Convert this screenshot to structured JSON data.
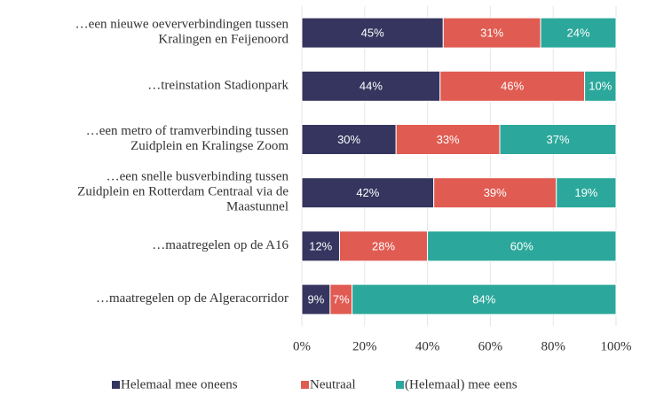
{
  "chart_data": {
    "type": "stacked-barh",
    "categories": [
      "…een nieuwe oeververbindingen tussen\nKralingen en Feijenoord",
      "…treinstation Stadionpark",
      "…een metro of tramverbinding tussen\nZuidplein en Kralingse Zoom",
      "…een snelle busverbinding tussen\nZuidplein en Rotterdam Centraal via de\nMaastunnel",
      "…maatregelen op de A16",
      "…maatregelen op de Algeracorridor"
    ],
    "series": [
      {
        "name": "Helemaal mee oneens",
        "color": "#35355f",
        "values": [
          45,
          44,
          30,
          42,
          12,
          9
        ],
        "value_labels": [
          "45%",
          "44%",
          "30%",
          "42%",
          "12%",
          "9%"
        ]
      },
      {
        "name": "Neutraal",
        "color": "#e05c52",
        "values": [
          31,
          46,
          33,
          39,
          28,
          7
        ],
        "value_labels": [
          "31%",
          "46%",
          "33%",
          "39%",
          "28%",
          "7%"
        ]
      },
      {
        "name": "(Helemaal) mee eens",
        "color": "#2ba89b",
        "values": [
          24,
          10,
          37,
          19,
          60,
          84
        ],
        "value_labels": [
          "24%",
          "10%",
          "37%",
          "19%",
          "60%",
          "84%"
        ]
      }
    ],
    "xlim": [
      0,
      100
    ],
    "xticks": [
      {
        "value": 0,
        "label": "0%"
      },
      {
        "value": 20,
        "label": "20%"
      },
      {
        "value": 40,
        "label": "40%"
      },
      {
        "value": 60,
        "label": "60%"
      },
      {
        "value": 80,
        "label": "80%"
      },
      {
        "value": 100,
        "label": "100%"
      }
    ],
    "grid": true
  }
}
